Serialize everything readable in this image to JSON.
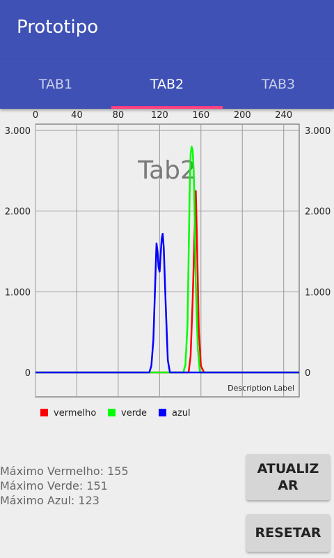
{
  "app": {
    "title": "Prototipo"
  },
  "tabs": [
    {
      "label": "TAB1",
      "active": false
    },
    {
      "label": "TAB2",
      "active": true
    },
    {
      "label": "TAB3",
      "active": false
    }
  ],
  "colors": {
    "primary": "#3f51b5",
    "accent": "#ff4081",
    "red": "#ff0000",
    "green": "#00ff00",
    "blue": "#0000ff"
  },
  "content_label": "Tab2",
  "chart_data": {
    "type": "line",
    "x_ticks": [
      0,
      40,
      80,
      120,
      160,
      200,
      240
    ],
    "y_ticks": [
      "0",
      "1.000",
      "2.000",
      "3.000"
    ],
    "xlim": [
      0,
      255
    ],
    "ylim": [
      0,
      3000
    ],
    "grid": true,
    "legend": "bottom-left",
    "description": "Description Label",
    "series": [
      {
        "name": "vermelho",
        "color": "#ff0000",
        "x": [
          0,
          148,
          150,
          152,
          154,
          155,
          156,
          158,
          160,
          163,
          255
        ],
        "y": [
          0,
          0,
          200,
          900,
          1800,
          2250,
          1700,
          500,
          80,
          0,
          0
        ]
      },
      {
        "name": "verde",
        "color": "#00ff00",
        "x": [
          0,
          143,
          145,
          147,
          148,
          149,
          150,
          151,
          152,
          153,
          154,
          155,
          157,
          159,
          255
        ],
        "y": [
          0,
          0,
          100,
          600,
          1400,
          2200,
          2700,
          2800,
          2750,
          2500,
          1900,
          1100,
          300,
          0,
          0
        ]
      },
      {
        "name": "azul",
        "color": "#0000ff",
        "x": [
          0,
          110,
          112,
          114,
          116,
          117,
          118,
          119,
          120,
          121,
          122,
          123,
          124,
          126,
          128,
          130,
          255
        ],
        "y": [
          0,
          0,
          80,
          400,
          1200,
          1600,
          1500,
          1300,
          1250,
          1450,
          1650,
          1720,
          1550,
          800,
          150,
          0,
          0
        ]
      }
    ]
  },
  "stats": {
    "red": "Máximo Vermelho: 155",
    "green": "Máximo Verde: 151",
    "blue": "Máximo Azul: 123"
  },
  "buttons": {
    "update_line1": "ATUALIZ",
    "update_line2": "AR",
    "reset": "RESETAR"
  }
}
